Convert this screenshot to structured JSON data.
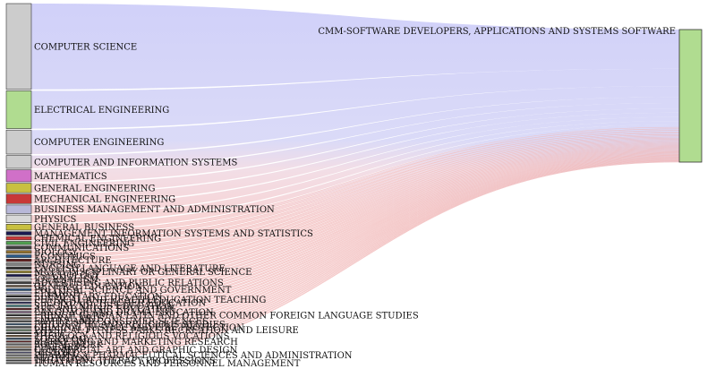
{
  "chart_data": {
    "type": "sankey",
    "target": {
      "name": "CMM-SOFTWARE DEVELOPERS, APPLICATIONS AND SYSTEMS SOFTWARE",
      "color": "#b0dc90"
    },
    "flows": [
      {
        "source": "COMPUTER SCIENCE",
        "value": 1000,
        "color": "#cccccc"
      },
      {
        "source": "ELECTRICAL ENGINEERING",
        "value": 440,
        "color": "#b0dc90"
      },
      {
        "source": "COMPUTER ENGINEERING",
        "value": 280,
        "color": "#cccccc"
      },
      {
        "source": "COMPUTER AND INFORMATION SYSTEMS",
        "value": 150,
        "color": "#cccccc"
      },
      {
        "source": "MATHEMATICS",
        "value": 140,
        "color": "#d070c8"
      },
      {
        "source": "GENERAL ENGINEERING",
        "value": 110,
        "color": "#c8c040"
      },
      {
        "source": "MECHANICAL ENGINEERING",
        "value": 110,
        "color": "#c83838"
      },
      {
        "source": "BUSINESS MANAGEMENT AND ADMINISTRATION",
        "value": 100,
        "color": "#b8b8d8"
      },
      {
        "source": "PHYSICS",
        "value": 90,
        "color": "#d8d8d8"
      },
      {
        "source": "GENERAL BUSINESS",
        "value": 70,
        "color": "#c8c040"
      },
      {
        "source": "MANAGEMENT INFORMATION SYSTEMS AND STATISTICS",
        "value": 40,
        "color": "#1a1a50"
      },
      {
        "source": "CHEMICAL ENGINEERING",
        "value": 40,
        "color": "#c83838"
      },
      {
        "source": "CIVIL ENGINEERING",
        "value": 38,
        "color": "#50a050"
      },
      {
        "source": "COMMUNICATIONS",
        "value": 35,
        "color": "#404040"
      },
      {
        "source": "BIOLOGY",
        "value": 34,
        "color": "#907030"
      },
      {
        "source": "ECONOMICS",
        "value": 32,
        "color": "#2a5a8a"
      },
      {
        "source": "ARCHITECTURE",
        "value": 30,
        "color": "#602020"
      },
      {
        "source": "NURSING",
        "value": 28,
        "color": "#808080"
      },
      {
        "source": "ENGLISH LANGUAGE AND LITERATURE",
        "value": 28,
        "color": "#303030"
      },
      {
        "source": "MULTI-DISCIPLINARY OR GENERAL SCIENCE",
        "value": 27,
        "color": "#a09040"
      },
      {
        "source": "PSYCHOLOGY",
        "value": 26,
        "color": "#1a1a50"
      },
      {
        "source": "JOURNALISM",
        "value": 25,
        "color": "#d8d8d8"
      },
      {
        "source": "ADVERTISING AND PUBLIC RELATIONS",
        "value": 24,
        "color": "#404040"
      },
      {
        "source": "GENERAL EDUCATION",
        "value": 24,
        "color": "#807060"
      },
      {
        "source": "POLITICAL SCIENCE AND GOVERNMENT",
        "value": 23,
        "color": "#2a5a8a"
      },
      {
        "source": "FINANCE",
        "value": 22,
        "color": "#b8b8d8"
      },
      {
        "source": "ELEMENTARY EDUCATION",
        "value": 21,
        "color": "#202020"
      },
      {
        "source": "PHYSICAL AND HEALTH EDUCATION TEACHING",
        "value": 21,
        "color": "#5a5a5a"
      },
      {
        "source": "SECONDARY TEACHER EDUCATION",
        "value": 20,
        "color": "#303060"
      },
      {
        "source": "SPECIAL NEEDS EDUCATION",
        "value": 20,
        "color": "#408080"
      },
      {
        "source": "ART AND MUSIC EDUCATION",
        "value": 20,
        "color": "#602020"
      },
      {
        "source": "LANGUAGE AND DRAMA EDUCATION",
        "value": 19,
        "color": "#806080"
      },
      {
        "source": "FRENCH GERMAN LATIN AND OTHER COMMON FOREIGN LANGUAGE STUDIES",
        "value": 19,
        "color": "#303030"
      },
      {
        "source": "LIBERAL ARTS",
        "value": 19,
        "color": "#7a6a5a"
      },
      {
        "source": "FAMILY AND CONSUMER SCIENCES",
        "value": 18,
        "color": "#505050"
      },
      {
        "source": "PHILOSOPHY AND RELIGIOUS STUDIES",
        "value": 18,
        "color": "#406080"
      },
      {
        "source": "CRIMINAL JUSTICE AND FIRE PROTECTION",
        "value": 18,
        "color": "#4a4a4a"
      },
      {
        "source": "PHYSICAL FITNESS PARKS RECREATION AND LEISURE",
        "value": 17,
        "color": "#608060"
      },
      {
        "source": "MUSIC",
        "value": 17,
        "color": "#303030"
      },
      {
        "source": "THEOLOGY AND RELIGIOUS VOCATIONS",
        "value": 17,
        "color": "#806040"
      },
      {
        "source": "SOCIOLOGY",
        "value": 16,
        "color": "#204060"
      },
      {
        "source": "MARKETING AND MARKETING RESEARCH",
        "value": 16,
        "color": "#602020"
      },
      {
        "source": "SOCIAL WORK",
        "value": 15,
        "color": "#606060"
      },
      {
        "source": "FINE ARTS",
        "value": 15,
        "color": "#a08060"
      },
      {
        "source": "COMMERCIAL ART AND GRAPHIC DESIGN",
        "value": 15,
        "color": "#303030"
      },
      {
        "source": "HISTORY",
        "value": 15,
        "color": "#505070"
      },
      {
        "source": "PHARMACY PHARMACEUTICAL SCIENCES AND ADMINISTRATION",
        "value": 14,
        "color": "#606060"
      },
      {
        "source": "NUTRITION",
        "value": 14,
        "color": "#808060"
      },
      {
        "source": "TREATMENT THERAPY PROFESSIONS",
        "value": 14,
        "color": "#404040"
      },
      {
        "source": "HUMAN RESOURCES AND PERSONNEL MANAGEMENT",
        "value": 13,
        "color": "#606060"
      }
    ]
  }
}
